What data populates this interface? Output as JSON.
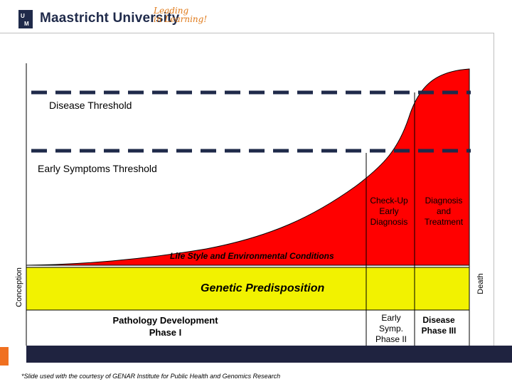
{
  "header": {
    "brand_name": "Maastricht University",
    "tagline_line1": "Leading",
    "tagline_line2": "in Learning!",
    "logo_icon": "um-logo-icon"
  },
  "diagram": {
    "disease_threshold": "Disease Threshold",
    "early_symptoms_threshold": "Early Symptoms Threshold",
    "lifestyle": "Life Style and Environmental Conditions",
    "genetic": "Genetic Predisposition",
    "pathology_line1": "Pathology Development",
    "pathology_line2": "Phase I",
    "conception": "Conception",
    "death": "Death",
    "stages": {
      "checkup_line1": "Check-Up",
      "checkup_line2": "Early",
      "checkup_line3": "Diagnosis",
      "diagnosis_line1": "Diagnosis",
      "diagnosis_line2": "and",
      "diagnosis_line3": "Treatment",
      "early_line1": "Early",
      "early_line2": "Symp.",
      "early_line3": "Phase II",
      "disease_line1": "Disease",
      "disease_line2": "Phase III"
    },
    "colors": {
      "curve": "#ff0000",
      "genetic_band": "#f2f200",
      "bar": "#1f2340",
      "accent": "#f07020"
    }
  },
  "footnote": "*Slide used with the courtesy of GENAR Institute for Public Health and Genomics Research"
}
